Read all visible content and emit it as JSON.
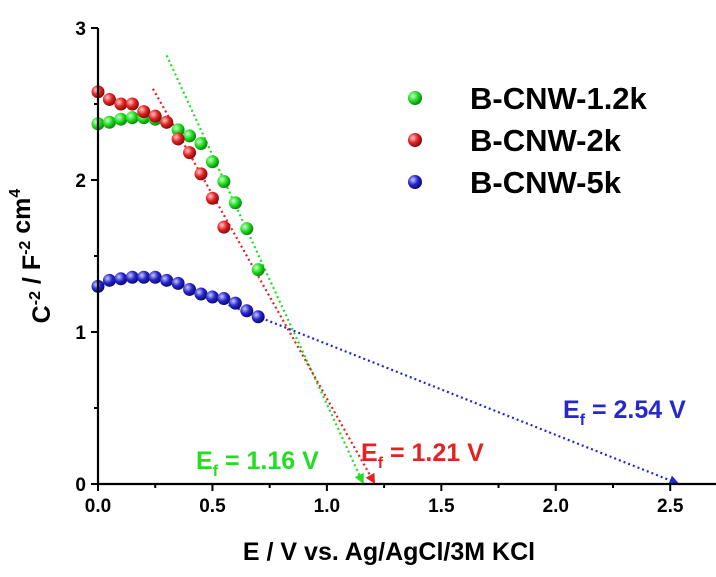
{
  "chart_data": {
    "type": "scatter",
    "title": "",
    "xlabel": "E / V vs. Ag/AgCl/3M KCl",
    "ylabel": "C-2 / F-2 cm4",
    "xlim": [
      0,
      2.7
    ],
    "ylim": [
      0,
      3
    ],
    "x_ticks": [
      "0.0",
      "0.5",
      "1.0",
      "1.5",
      "2.0",
      "2.5"
    ],
    "y_ticks": [
      "0",
      "1",
      "2",
      "3"
    ],
    "legend_position": "top-right",
    "series": [
      {
        "name": "B-CNW-1.2k",
        "color": "#22dd22",
        "x": [
          0.0,
          0.05,
          0.1,
          0.15,
          0.2,
          0.25,
          0.3,
          0.35,
          0.4,
          0.45,
          0.5,
          0.55,
          0.6,
          0.65,
          0.7
        ],
        "y": [
          2.37,
          2.38,
          2.4,
          2.41,
          2.41,
          2.4,
          2.38,
          2.33,
          2.29,
          2.24,
          2.12,
          1.99,
          1.85,
          1.68,
          1.41
        ]
      },
      {
        "name": "B-CNW-2k",
        "color": "#e32222",
        "x": [
          0.0,
          0.05,
          0.1,
          0.15,
          0.2,
          0.25,
          0.3,
          0.35,
          0.4,
          0.45,
          0.5,
          0.55
        ],
        "y": [
          2.58,
          2.53,
          2.5,
          2.5,
          2.45,
          2.42,
          2.38,
          2.27,
          2.18,
          2.04,
          1.88,
          1.69
        ]
      },
      {
        "name": "B-CNW-5k",
        "color": "#2727cc",
        "x": [
          0.0,
          0.05,
          0.1,
          0.15,
          0.2,
          0.25,
          0.3,
          0.35,
          0.4,
          0.45,
          0.5,
          0.55,
          0.6,
          0.65,
          0.7
        ],
        "y": [
          1.3,
          1.34,
          1.35,
          1.36,
          1.36,
          1.36,
          1.34,
          1.32,
          1.28,
          1.25,
          1.23,
          1.22,
          1.19,
          1.14,
          1.1
        ]
      }
    ],
    "fit_lines": [
      {
        "series": "B-CNW-1.2k",
        "color": "#22dd22",
        "x": [
          0.3,
          1.16
        ],
        "y": [
          2.82,
          0.0
        ]
      },
      {
        "series": "B-CNW-2k",
        "color": "#e32222",
        "x": [
          0.24,
          1.21
        ],
        "y": [
          2.6,
          0.0
        ]
      },
      {
        "series": "B-CNW-5k",
        "color": "#2727cc",
        "x": [
          0.55,
          2.54
        ],
        "y": [
          1.19,
          0.0
        ]
      }
    ],
    "annotations": [
      {
        "sub": "f",
        "rest": " = 1.16 V",
        "color": "#22dd22",
        "x": 1.16
      },
      {
        "sub": "f",
        "rest": " = 1.21 V",
        "color": "#e32222",
        "x": 1.21
      },
      {
        "sub": "f",
        "rest": " = 2.54 V",
        "color": "#2727cc",
        "x": 2.54
      }
    ]
  }
}
